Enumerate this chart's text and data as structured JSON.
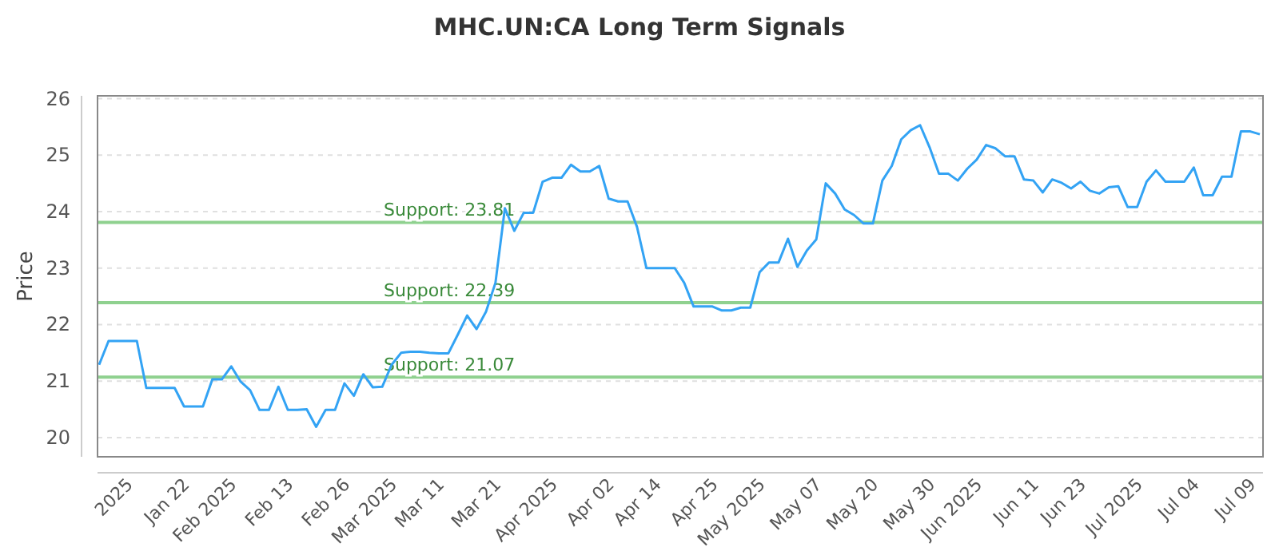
{
  "chart_data": {
    "type": "line",
    "title": "MHC.UN:CA Long Term Signals",
    "ylabel": "Price",
    "categories": [
      null,
      null,
      null,
      "2025",
      null,
      null,
      null,
      null,
      null,
      "Jan 22",
      null,
      null,
      null,
      null,
      "Feb 2025",
      null,
      null,
      null,
      null,
      null,
      "Feb 13",
      null,
      null,
      null,
      null,
      null,
      "Feb 26",
      null,
      null,
      null,
      null,
      "Mar 2025",
      null,
      null,
      null,
      null,
      "Mar 11",
      null,
      null,
      null,
      null,
      null,
      "Mar 21",
      null,
      null,
      null,
      null,
      null,
      "Apr 2025",
      null,
      null,
      null,
      null,
      null,
      "Apr 02",
      null,
      null,
      null,
      null,
      "Apr 14",
      null,
      null,
      null,
      null,
      null,
      "Apr 25",
      null,
      null,
      null,
      null,
      "May 2025",
      null,
      null,
      null,
      null,
      null,
      "May 07",
      null,
      null,
      null,
      null,
      null,
      "May 20",
      null,
      null,
      null,
      null,
      null,
      "May 30",
      null,
      null,
      null,
      null,
      "Jun 2025",
      null,
      null,
      null,
      null,
      null,
      "Jun 11",
      null,
      null,
      null,
      null,
      "Jun 23",
      null,
      null,
      null,
      null,
      null,
      "Jul 2025",
      null,
      null,
      null,
      null,
      null,
      "Jul 04",
      null,
      null,
      null,
      null,
      null,
      "Jul 09",
      null
    ],
    "series": [
      {
        "color": "#33a3f4",
        "values": [
          21.29,
          21.71,
          21.71,
          21.71,
          21.71,
          20.88,
          20.88,
          20.88,
          20.88,
          20.55,
          20.55,
          20.55,
          21.03,
          21.03,
          21.26,
          20.99,
          20.84,
          20.49,
          20.49,
          20.9,
          20.49,
          20.49,
          20.5,
          20.19,
          20.49,
          20.49,
          20.96,
          20.74,
          21.12,
          20.89,
          20.9,
          21.29,
          21.5,
          21.52,
          21.52,
          21.5,
          21.49,
          21.49,
          21.82,
          22.16,
          21.92,
          22.23,
          22.74,
          24.06,
          23.66,
          23.98,
          23.98,
          24.53,
          24.6,
          24.6,
          24.83,
          24.71,
          24.71,
          24.81,
          24.23,
          24.18,
          24.18,
          23.73,
          23.0,
          23.0,
          23.0,
          23.0,
          22.74,
          22.32,
          22.32,
          22.32,
          22.25,
          22.25,
          22.3,
          22.3,
          22.93,
          23.1,
          23.1,
          23.52,
          23.02,
          23.31,
          23.51,
          24.5,
          24.32,
          24.04,
          23.94,
          23.79,
          23.79,
          24.55,
          24.81,
          25.28,
          25.44,
          25.53,
          25.14,
          24.67,
          24.67,
          24.55,
          24.76,
          24.92,
          25.18,
          25.12,
          24.98,
          24.98,
          24.57,
          24.55,
          24.34,
          24.57,
          24.51,
          24.41,
          24.53,
          24.37,
          24.32,
          24.43,
          24.45,
          24.08,
          24.08,
          24.53,
          24.73,
          24.53,
          24.53,
          24.53,
          24.78,
          24.29,
          24.29,
          24.62,
          24.62,
          25.42,
          25.42,
          25.37
        ]
      }
    ],
    "ylim": [
      19.66,
      26.05
    ],
    "yticks": [
      20,
      21,
      22,
      23,
      24,
      25,
      26
    ],
    "grid": "y",
    "marker": "none",
    "line_style": "solid",
    "ref_lines": [
      {
        "axis": "y",
        "value": 23.81,
        "label": "Support: 23.81",
        "color": "#8fd18f"
      },
      {
        "axis": "y",
        "value": 22.39,
        "label": "Support: 22.39",
        "color": "#8fd18f"
      },
      {
        "axis": "y",
        "value": 21.07,
        "label": "Support: 21.07",
        "color": "#8fd18f"
      }
    ]
  }
}
